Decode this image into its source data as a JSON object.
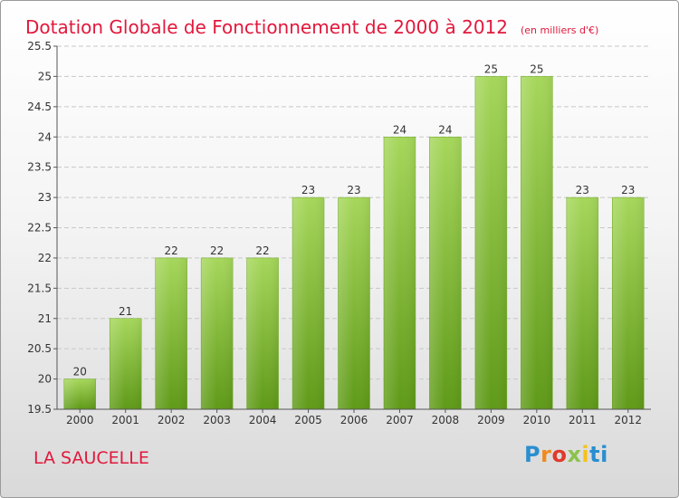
{
  "title": "Dotation Globale de Fonctionnement de 2000 à 2012",
  "unit": "(en milliers d'€)",
  "commune": "LA SAUCELLE",
  "logo": {
    "letters": [
      "P",
      "r",
      "o",
      "x",
      "i",
      "ti"
    ]
  },
  "colors": {
    "title": "#e2183c",
    "bar_light": "#a6d75b",
    "bar_dark": "#5f9a18",
    "grid": "#c8c8c8",
    "axis_text": "#333333"
  },
  "chart_data": {
    "type": "bar",
    "categories": [
      "2000",
      "2001",
      "2002",
      "2003",
      "2004",
      "2005",
      "2006",
      "2007",
      "2008",
      "2009",
      "2010",
      "2011",
      "2012"
    ],
    "values": [
      20,
      21,
      22,
      22,
      22,
      23,
      23,
      24,
      24,
      25,
      25,
      23,
      23
    ],
    "value_labels": [
      "20",
      "21",
      "22",
      "22",
      "22",
      "23",
      "23",
      "24",
      "24",
      "25",
      "25",
      "23",
      "23"
    ],
    "yticks": [
      "19.5",
      "20",
      "20.5",
      "21",
      "21.5",
      "22",
      "22.5",
      "23",
      "23.5",
      "24",
      "24.5",
      "25",
      "25.5"
    ],
    "ylim": [
      19.5,
      25.5
    ],
    "grid": true,
    "xlabel": "",
    "ylabel": ""
  }
}
